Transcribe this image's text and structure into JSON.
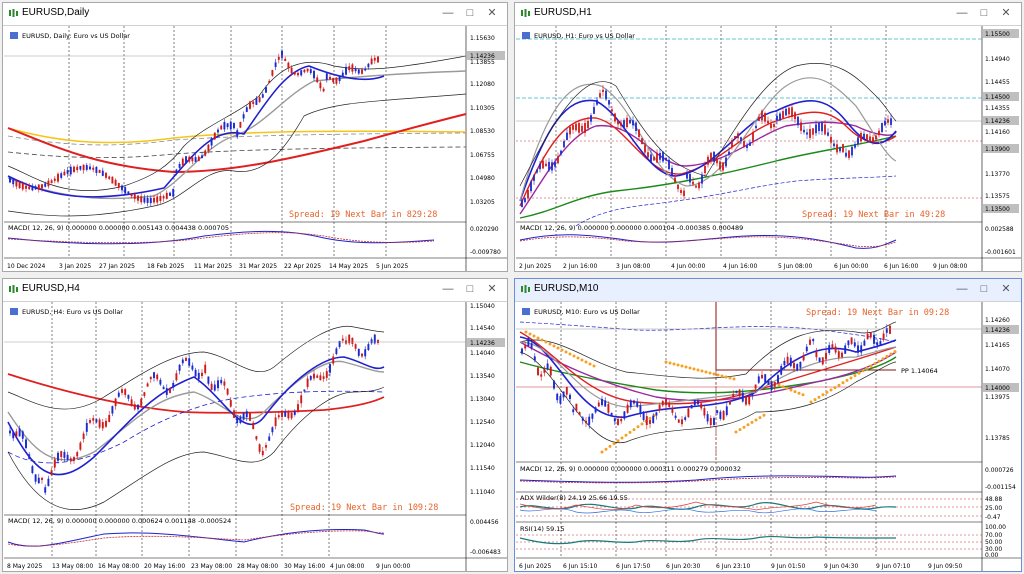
{
  "windows": [
    {
      "id": "daily",
      "title": "EURUSD,Daily",
      "subtitle": "EURUSD, Daily: Euro vs US Dollar",
      "spread_text": "Spread: 19  Next Bar in 829:28",
      "macd_label": "MACD( 12, 26, 9) 0.000000 0.000000 0.005143 0.004438 0.000705",
      "price_labels": [
        "1.15630",
        "1.14236",
        "1.13855",
        "1.12080",
        "1.10305",
        "1.08530",
        "1.06755",
        "1.04980",
        "1.03205"
      ],
      "macd_scale": [
        "0.020290",
        "-0.009780"
      ],
      "time_labels": [
        "10 Dec 2024",
        "3 Jan 2025",
        "27 Jan 2025",
        "18 Feb 2025",
        "11 Mar 2025",
        "31 Mar 2025",
        "22 Apr 2025",
        "14 May 2025",
        "5 Jun 2025"
      ],
      "current_price": "1.14236"
    },
    {
      "id": "h1",
      "title": "EURUSD,H1",
      "subtitle": "EURUSD, H1: Euro vs US Dollar",
      "spread_text": "Spread: 19  Next Bar in 49:28",
      "macd_label": "MACD( 12, 26, 9) 0.000000 0.000000 0.000104 -0.000385 0.000489",
      "price_labels": [
        "1.15500",
        "1.14940",
        "1.14455",
        "1.14500",
        "1.14355",
        "1.14236",
        "1.14160",
        "1.13900",
        "1.13770",
        "1.13575",
        "1.13500"
      ],
      "macd_scale": [
        "0.002588",
        "-0.001601"
      ],
      "time_labels": [
        "2 Jun 2025",
        "2 Jun 16:00",
        "3 Jun 08:00",
        "4 Jun 00:00",
        "4 Jun 16:00",
        "5 Jun 08:00",
        "6 Jun 00:00",
        "6 Jun 16:00",
        "9 Jun 08:00"
      ],
      "current_price": "1.14236"
    },
    {
      "id": "h4",
      "title": "EURUSD,H4",
      "subtitle": "EURUSD, H4: Euro vs US Dollar",
      "spread_text": "Spread: 19  Next Bar in 109:28",
      "macd_label": "MACD( 12, 26, 9) 0.000000 0.000000 0.000624 0.001148 -0.000524",
      "price_labels": [
        "1.15040",
        "1.14540",
        "1.14236",
        "1.14040",
        "1.13540",
        "1.13040",
        "1.12540",
        "1.12040",
        "1.11540",
        "1.11040"
      ],
      "macd_scale": [
        "0.004456",
        "-0.006483"
      ],
      "time_labels": [
        "8 May 2025",
        "13 May 08:00",
        "16 May 08:00",
        "20 May 16:00",
        "23 May 08:00",
        "28 May 08:00",
        "30 May 16:00",
        "4 Jun 08:00",
        "9 Jun 00:00"
      ],
      "current_price": "1.14236"
    },
    {
      "id": "m10",
      "title": "EURUSD,M10",
      "subtitle": "EURUSD, M10: Euro vs US Dollar",
      "spread_text": "Spread: 19  Next Bar in 09:28",
      "macd_label": "MACD( 12, 26, 9) 0.000000 0.000000 0.000311 0.000279 0.000032",
      "adx_label": "ADX Wilder(8) 24.19 25.66 19.55",
      "rsi_label": "RSI(14) 59.15",
      "pp_label": "PP 1.14064",
      "price_labels": [
        "1.14260",
        "1.14236",
        "1.14165",
        "1.14070",
        "1.14000",
        "1.13975",
        "1.13785"
      ],
      "macd_scale": [
        "0.000726",
        "-0.001154"
      ],
      "adx_scale": [
        "48.88",
        "25.00",
        "-0.47"
      ],
      "rsi_scale": [
        "100.00",
        "70.00",
        "50.00",
        "30.00",
        "0.00"
      ],
      "time_labels": [
        "6 Jun 2025",
        "6 Jun 15:10",
        "6 Jun 17:50",
        "6 Jun 20:30",
        "6 Jun 23:10",
        "9 Jun 01:50",
        "9 Jun 04:30",
        "9 Jun 07:10",
        "9 Jun 09:50"
      ],
      "current_price": "1.14236"
    }
  ],
  "window_controls": [
    "minimize",
    "maximize",
    "close"
  ]
}
